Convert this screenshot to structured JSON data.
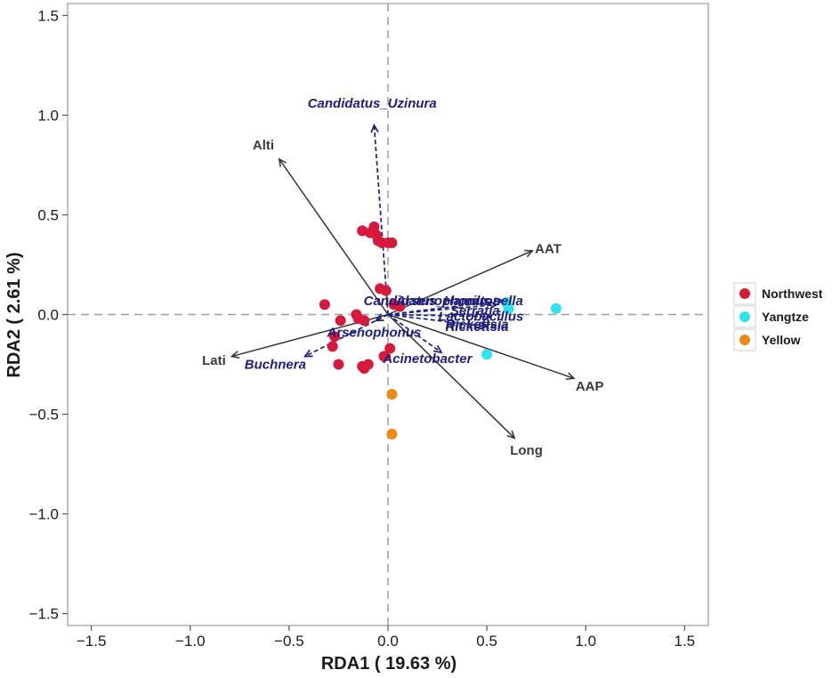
{
  "chart_data": {
    "type": "scatter",
    "xlabel": "RDA1 ( 19.63 %)",
    "ylabel": "RDA2 ( 2.61 %)",
    "xlim": [
      -1.62,
      1.62
    ],
    "ylim": [
      -1.56,
      1.56
    ],
    "xticks": [
      "-1.5",
      "-1.0",
      "-0.5",
      "0.0",
      "0.5",
      "1.0",
      "1.5"
    ],
    "yticks": [
      "-1.5",
      "-1.0",
      "-0.5",
      "0.0",
      "0.5",
      "1.0",
      "1.5"
    ],
    "grid": false,
    "reference_lines": "dashed lines at x = 0 and y = 0",
    "legend_position": "right",
    "legend": [
      {
        "name": "Northwest",
        "color": "#d7193c"
      },
      {
        "name": "Yangtze",
        "color": "#2ee5ee"
      },
      {
        "name": "Yellow",
        "color": "#ef8a16"
      }
    ],
    "series": [
      {
        "name": "Northwest",
        "color": "#d7193c",
        "points": [
          [
            -0.13,
            0.42
          ],
          [
            -0.09,
            0.41
          ],
          [
            -0.07,
            0.44
          ],
          [
            -0.06,
            0.4
          ],
          [
            -0.05,
            0.37
          ],
          [
            -0.03,
            0.36
          ],
          [
            0.0,
            0.36
          ],
          [
            0.02,
            0.36
          ],
          [
            -0.04,
            0.13
          ],
          [
            -0.01,
            0.12
          ],
          [
            0.03,
            0.05
          ],
          [
            0.06,
            0.04
          ],
          [
            -0.32,
            0.05
          ],
          [
            -0.16,
            0.0
          ],
          [
            -0.15,
            -0.02
          ],
          [
            -0.12,
            -0.03
          ],
          [
            -0.24,
            -0.03
          ],
          [
            -0.27,
            -0.11
          ],
          [
            -0.28,
            -0.16
          ],
          [
            -0.25,
            -0.25
          ],
          [
            -0.13,
            -0.26
          ],
          [
            -0.12,
            -0.27
          ],
          [
            -0.1,
            -0.25
          ],
          [
            -0.02,
            -0.21
          ],
          [
            0.01,
            -0.17
          ]
        ]
      },
      {
        "name": "Yangtze",
        "color": "#2ee5ee",
        "points": [
          [
            0.85,
            0.03
          ],
          [
            0.6,
            0.06
          ],
          [
            0.61,
            0.03
          ],
          [
            0.5,
            -0.2
          ]
        ]
      },
      {
        "name": "Yellow",
        "color": "#ef8a16",
        "points": [
          [
            0.02,
            -0.4
          ],
          [
            0.02,
            -0.6
          ]
        ]
      }
    ],
    "environment_vectors": [
      {
        "label": "Alti",
        "x": -0.55,
        "y": 0.78
      },
      {
        "label": "AAT",
        "x": 0.73,
        "y": 0.32
      },
      {
        "label": "AAP",
        "x": 0.94,
        "y": -0.32
      },
      {
        "label": "Long",
        "x": 0.64,
        "y": -0.62
      },
      {
        "label": "Lati",
        "x": -0.79,
        "y": -0.21
      }
    ],
    "species_vectors": [
      {
        "label": "Candidatus_Uzinura",
        "x": -0.07,
        "y": 0.95
      },
      {
        "label": "Buchnera",
        "x": -0.42,
        "y": -0.21
      },
      {
        "label": "Arsenophonus",
        "x": -0.06,
        "y": -0.03
      },
      {
        "label": "Candidatus_Hamiltonella",
        "x": 0.58,
        "y": 0.07
      },
      {
        "label": "Serratia",
        "x": 0.55,
        "y": 0.05
      },
      {
        "label": "Lactobacillus",
        "x": 0.52,
        "y": -0.01
      },
      {
        "label": "Rickettsia",
        "x": 0.5,
        "y": -0.06
      },
      {
        "label": "Acinetobacter",
        "x": 0.27,
        "y": -0.19
      }
    ],
    "species_label_text": [
      {
        "text": "Candidatus_Uzinura",
        "x": -0.08,
        "y": 1.06
      },
      {
        "text": "Buchnera",
        "x": -0.57,
        "y": -0.25
      },
      {
        "text": "Arsenophonus",
        "x": -0.07,
        "y": -0.09
      },
      {
        "text": "Candidatus_Hamiltonella",
        "x": 0.28,
        "y": 0.07
      },
      {
        "text": "Arsenophonus",
        "x": 0.28,
        "y": 0.07
      },
      {
        "text": "Serratia",
        "x": 0.44,
        "y": 0.02
      },
      {
        "text": "Lactobacillus",
        "x": 0.47,
        "y": -0.01
      },
      {
        "text": "Rickettsia",
        "x": 0.45,
        "y": -0.06
      },
      {
        "text": "Rickettsia",
        "x": 0.45,
        "y": -0.05
      },
      {
        "text": "Acinetobacter",
        "x": 0.2,
        "y": -0.22
      }
    ],
    "env_label_text": [
      {
        "text": "Alti",
        "x": -0.63,
        "y": 0.85
      },
      {
        "text": "AAT",
        "x": 0.81,
        "y": 0.33
      },
      {
        "text": "AAP",
        "x": 1.02,
        "y": -0.36
      },
      {
        "text": "Long",
        "x": 0.7,
        "y": -0.68
      },
      {
        "text": "Lati",
        "x": -0.88,
        "y": -0.23
      }
    ]
  }
}
